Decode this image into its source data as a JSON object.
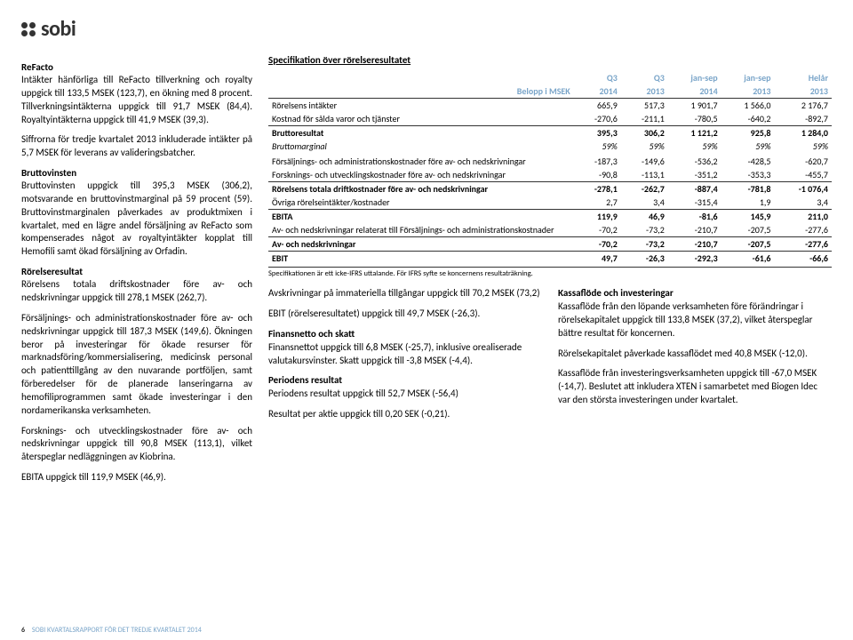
{
  "logo": {
    "text": "sobi"
  },
  "left": {
    "h1": "ReFacto",
    "p1": "Intäkter hänförliga till ReFacto tillverkning och royalty uppgick till 133,5 MSEK (123,7), en ökning med 8 procent. Tillverkningsintäkterna uppgick till 91,7 MSEK (84,4). Royaltyintäkterna uppgick till 41,9 MSEK (39,3).",
    "p2": "Siffrorna för tredje kvartalet 2013 inkluderade intäkter på 5,7 MSEK för leverans av valideringsbatcher.",
    "h2": "Bruttovinsten",
    "p3": "Bruttovinsten uppgick till 395,3 MSEK (306,2), motsvarande en bruttovinstmarginal på 59 procent (59). Bruttovinstmarginalen påverkades av produktmixen i kvartalet, med en lägre andel försäljning av ReFacto som kompenserades något av royaltyintäkter kopplat till Hemofili samt ökad försäljning av Orfadin.",
    "h3": "Rörelseresultat",
    "p4": "Rörelsens totala driftskostnader före av- och nedskrivningar uppgick till 278,1 MSEK (262,7).",
    "p5": "Försäljnings- och administrationskostnader före av- och nedskrivningar uppgick till 187,3 MSEK (149,6). Ökningen beror på investeringar för ökade resurser för marknadsföring/kommersialisering, medicinsk personal och patienttillgång av den nuvarande portföljen, samt förberedelser för de planerade lanseringarna av hemofiliprogrammen samt ökade investeringar i den nordamerikanska verksamheten.",
    "p6": "Forsknings- och utvecklingskostnader före av- och nedskrivningar uppgick till 90,8 MSEK (113,1), vilket återspeglar nedläggningen av Kiobrina.",
    "p7": "EBITA uppgick till 119,9 MSEK (46,9)."
  },
  "spec": {
    "title": "Specifikation över rörelseresultatet",
    "header_label": "Belopp i MSEK",
    "cols": [
      "Q3",
      "Q3",
      "jan-sep",
      "jan-sep",
      "Helår"
    ],
    "years": [
      "2014",
      "2013",
      "2014",
      "2013",
      "2013"
    ],
    "rows": [
      {
        "label": "Rörelsens intäkter",
        "v": [
          "665,9",
          "517,3",
          "1 901,7",
          "1 566,0",
          "2 176,7"
        ]
      },
      {
        "label": "Kostnad för sålda varor och tjänster",
        "v": [
          "-270,6",
          "-211,1",
          "-780,5",
          "-640,2",
          "-892,7"
        ]
      },
      {
        "label": "Bruttoresultat",
        "v": [
          "395,3",
          "306,2",
          "1 121,2",
          "925,8",
          "1 284,0"
        ],
        "bold": true,
        "rule": true
      },
      {
        "label": "Bruttomarginal",
        "v": [
          "59%",
          "59%",
          "59%",
          "59%",
          "59%"
        ],
        "italic": true
      },
      {
        "label": "",
        "v": [
          "",
          "",
          "",
          "",
          ""
        ]
      },
      {
        "label": "Försäljnings- och administrationskostnader före av- och nedskrivningar",
        "v": [
          "-187,3",
          "-149,6",
          "-536,2",
          "-428,5",
          "-620,7"
        ]
      },
      {
        "label": "Forsknings- och utvecklingskostnader före av- och nedskrivningar",
        "v": [
          "-90,8",
          "-113,1",
          "-351,2",
          "-353,3",
          "-455,7"
        ]
      },
      {
        "label": "Rörelsens totala driftkostnader före av- och nedskrivningar",
        "v": [
          "-278,1",
          "-262,7",
          "-887,4",
          "-781,8",
          "-1 076,4"
        ],
        "bold": true,
        "rule": true
      },
      {
        "label": "Övriga rörelseintäkter/kostnader",
        "v": [
          "2,7",
          "3,4",
          "-315,4",
          "1,9",
          "3,4"
        ]
      },
      {
        "label": "EBITA",
        "v": [
          "119,9",
          "46,9",
          "-81,6",
          "145,9",
          "211,0"
        ],
        "bold": true,
        "rule": true
      },
      {
        "label": "Av- och nedskrivningar relaterat till Försäljnings- och administrationskostnader",
        "v": [
          "-70,2",
          "-73,2",
          "-210,7",
          "-207,5",
          "-277,6"
        ]
      },
      {
        "label": "Av- och nedskrivningar",
        "v": [
          "-70,2",
          "-73,2",
          "-210,7",
          "-207,5",
          "-277,6"
        ],
        "bold": true,
        "rule": true
      },
      {
        "label": "EBIT",
        "v": [
          "49,7",
          "-26,3",
          "-292,3",
          "-61,6",
          "-66,6"
        ],
        "bold": true,
        "rule": true
      }
    ],
    "footnote": "Specifikationen är ett icke-IFRS uttalande. För IFRS syfte se koncernens resultaträkning."
  },
  "lower": {
    "c1": {
      "p1": "Avskrivningar på immateriella tillgångar uppgick till 70,2 MSEK (73,2)",
      "p2": "EBIT (rörelseresultatet) uppgick till 49,7 MSEK (-26,3).",
      "h1": "Finansnetto och skatt",
      "p3": "Finansnettot uppgick till 6,8 MSEK (-25,7), inklusive orealiserade valutakursvinster. Skatt uppgick till -3,8 MSEK (-4,4).",
      "h2": "Periodens resultat",
      "p4": "Periodens resultat uppgick till 52,7 MSEK (-56,4)",
      "p5": "Resultat per aktie uppgick till 0,20 SEK (-0,21)."
    },
    "c2": {
      "h1": "Kassaflöde och investeringar",
      "p1": "Kassaflöde från den löpande verksamheten före förändringar i rörelsekapitalet uppgick till 133,8 MSEK (37,2), vilket återspeglar bättre resultat för koncernen.",
      "p2": "Rörelsekapitalet påverkade kassaflödet med 40,8 MSEK (-12,0).",
      "p3": "Kassaflöde från investeringsverksamheten uppgick till -67,0 MSEK (-14,7). Beslutet att inkludera XTEN i samarbetet med Biogen Idec var den största investeringen under kvartalet."
    }
  },
  "footer": {
    "page": "6",
    "text": "SOBI KVARTALSRAPPORT FÖR DET TREDJE KVARTALET 2014"
  }
}
